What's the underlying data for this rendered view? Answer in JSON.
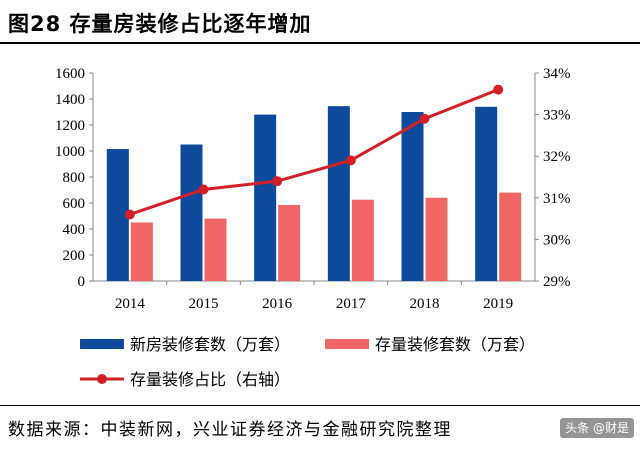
{
  "header": {
    "title": "图28  存量房装修占比逐年增加"
  },
  "footer": {
    "source": "数据来源：中装新网，兴业证券经济与金融研究院整理"
  },
  "watermark": {
    "text": "头条 @财是"
  },
  "colors": {
    "new_home": "#0d4a9c",
    "existing_home": "#f06565",
    "share_line": "#d32027",
    "axis": "#888888"
  },
  "chart_data": {
    "type": "bar+line",
    "title": "存量房装修占比逐年增加",
    "categories": [
      "2014",
      "2015",
      "2016",
      "2017",
      "2018",
      "2019"
    ],
    "series": [
      {
        "name": "新房装修套数（万套）",
        "type": "bar",
        "axis": "left",
        "values": [
          1015,
          1050,
          1280,
          1345,
          1300,
          1340
        ]
      },
      {
        "name": "存量装修套数（万套）",
        "type": "bar",
        "axis": "left",
        "values": [
          450,
          480,
          585,
          625,
          640,
          680
        ]
      },
      {
        "name": "存量装修占比（右轴）",
        "type": "line",
        "axis": "right",
        "values": [
          30.6,
          31.2,
          31.4,
          31.9,
          32.9,
          33.6
        ]
      }
    ],
    "left_axis": {
      "min": 0,
      "max": 1600,
      "step": 200,
      "ticks": [
        "0",
        "200",
        "400",
        "600",
        "800",
        "1000",
        "1200",
        "1400",
        "1600"
      ]
    },
    "right_axis": {
      "min": 29,
      "max": 34,
      "step": 1,
      "ticks": [
        "29%",
        "30%",
        "31%",
        "32%",
        "33%",
        "34%"
      ]
    },
    "legend": {
      "position": "bottom"
    },
    "grid": false
  }
}
